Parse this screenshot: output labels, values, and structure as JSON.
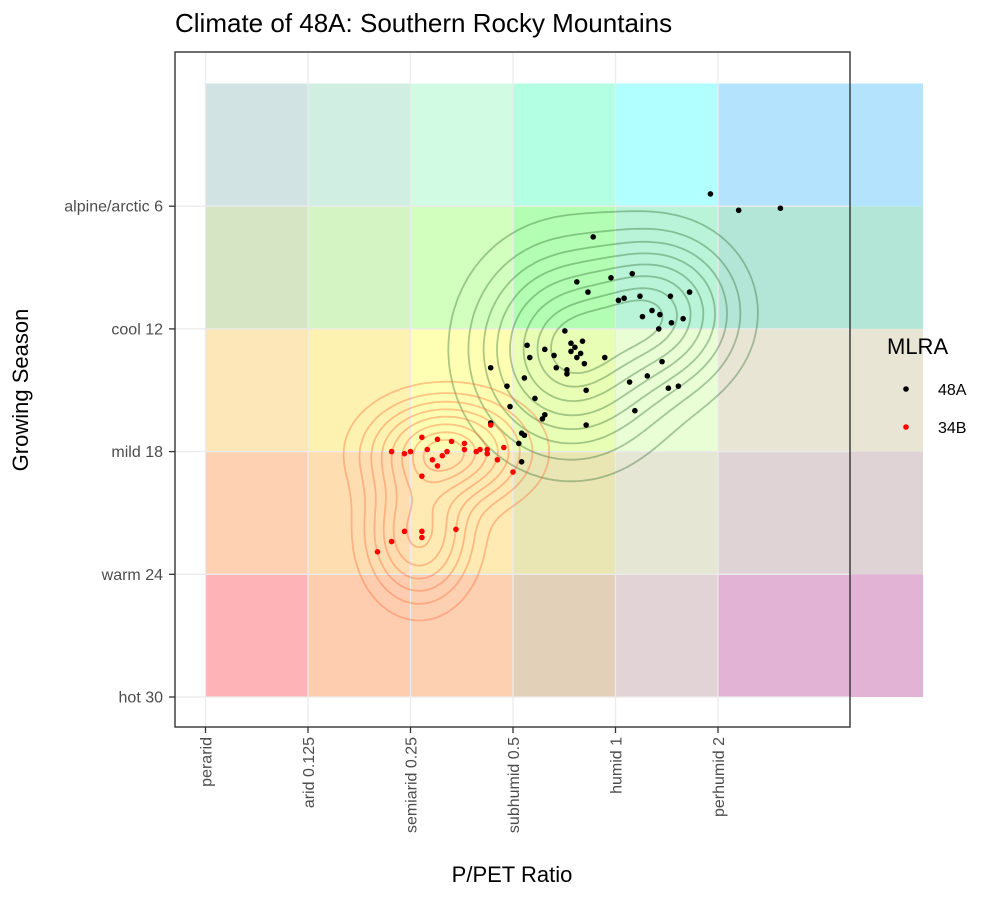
{
  "chart_data": {
    "type": "scatter",
    "title": "Climate of 48A: Southern Rocky Mountains",
    "xlabel": "P/PET Ratio",
    "ylabel": "Growing Season",
    "x_scale": "log2",
    "xlim": [
      0.0625,
      8
    ],
    "ylim": [
      0,
      36
    ],
    "x_ticks": [
      {
        "value": 0.0625,
        "label": "perarid"
      },
      {
        "value": 0.125,
        "label": "arid 0.125"
      },
      {
        "value": 0.25,
        "label": "semiarid 0.25"
      },
      {
        "value": 0.5,
        "label": "subhumid 0.5"
      },
      {
        "value": 1,
        "label": "humid 1"
      },
      {
        "value": 2,
        "label": "perhumid 2"
      }
    ],
    "y_ticks": [
      {
        "value": 30,
        "label": "hot 30"
      },
      {
        "value": 24,
        "label": "warm 24"
      },
      {
        "value": 18,
        "label": "mild 18"
      },
      {
        "value": 12,
        "label": "cool 12"
      },
      {
        "value": 6,
        "label": "alpine/arctic 6"
      }
    ],
    "grid": true,
    "legend": {
      "title": "MLRA",
      "position": "right"
    },
    "regions": {
      "x_breaks": [
        0.0625,
        0.125,
        0.25,
        0.5,
        1,
        2,
        8
      ],
      "y_breaks": [
        0,
        6,
        12,
        18,
        24,
        30
      ],
      "colors": [
        [
          "#d1e3e3",
          "#d1eee3",
          "#d1fce3",
          "#b2ffe3",
          "#b2ffff",
          "#b4e3fd"
        ],
        [
          "#d6e6c4",
          "#d4f4c4",
          "#d2ffbe",
          "#b2ffb3",
          "#b9f3d8",
          "#b4e6d7"
        ],
        [
          "#fde6b8",
          "#fdf2b0",
          "#feffb2",
          "#e9feb5",
          "#e9fed5",
          "#e8e5d5"
        ],
        [
          "#fed1b3",
          "#fedeb0",
          "#feeab2",
          "#e9e6b3",
          "#e6e6d5",
          "#e0d3d5"
        ],
        [
          "#feb3b7",
          "#fecdb0",
          "#fed0b2",
          "#e3d0b8",
          "#e2d3d6",
          "#e2b3d5"
        ]
      ]
    },
    "series": [
      {
        "name": "48A",
        "color": "#000000",
        "points": [
          [
            1.9,
            5.4
          ],
          [
            2.3,
            6.2
          ],
          [
            3.05,
            6.1
          ],
          [
            0.86,
            7.5
          ],
          [
            0.77,
            9.7
          ],
          [
            0.97,
            9.5
          ],
          [
            0.83,
            10.2
          ],
          [
            1.02,
            10.6
          ],
          [
            1.12,
            9.3
          ],
          [
            1.06,
            10.5
          ],
          [
            1.18,
            10.4
          ],
          [
            1.45,
            10.4
          ],
          [
            1.65,
            10.2
          ],
          [
            1.2,
            11.4
          ],
          [
            1.28,
            11.1
          ],
          [
            1.35,
            11.3
          ],
          [
            1.46,
            11.7
          ],
          [
            1.58,
            11.5
          ],
          [
            1.34,
            12.0
          ],
          [
            0.62,
            13.0
          ],
          [
            0.71,
            12.1
          ],
          [
            0.74,
            12.7
          ],
          [
            0.76,
            12.9
          ],
          [
            0.74,
            13.1
          ],
          [
            0.8,
            12.6
          ],
          [
            0.79,
            13.2
          ],
          [
            0.77,
            13.4
          ],
          [
            0.66,
            13.3
          ],
          [
            0.56,
            13.4
          ],
          [
            0.55,
            12.8
          ],
          [
            0.67,
            13.9
          ],
          [
            0.81,
            13.7
          ],
          [
            0.93,
            13.4
          ],
          [
            0.72,
            14.0
          ],
          [
            0.54,
            14.4
          ],
          [
            0.72,
            14.2
          ],
          [
            0.82,
            15.0
          ],
          [
            1.24,
            14.3
          ],
          [
            1.37,
            13.6
          ],
          [
            1.43,
            14.9
          ],
          [
            1.53,
            14.8
          ],
          [
            1.1,
            14.6
          ],
          [
            1.14,
            16.0
          ],
          [
            0.43,
            13.9
          ],
          [
            0.48,
            14.8
          ],
          [
            0.58,
            15.4
          ],
          [
            0.49,
            15.8
          ],
          [
            0.62,
            16.2
          ],
          [
            0.61,
            16.4
          ],
          [
            0.82,
            16.7
          ],
          [
            0.43,
            16.6
          ],
          [
            0.53,
            17.1
          ],
          [
            0.54,
            17.2
          ],
          [
            0.52,
            17.6
          ],
          [
            0.53,
            18.5
          ]
        ]
      },
      {
        "name": "34B",
        "color": "#ff0000",
        "points": [
          [
            0.43,
            16.7
          ],
          [
            0.42,
            17.9
          ],
          [
            0.27,
            17.3
          ],
          [
            0.3,
            17.4
          ],
          [
            0.33,
            17.5
          ],
          [
            0.36,
            17.6
          ],
          [
            0.4,
            17.9
          ],
          [
            0.47,
            17.8
          ],
          [
            0.45,
            18.4
          ],
          [
            0.22,
            18.0
          ],
          [
            0.25,
            18.0
          ],
          [
            0.28,
            17.9
          ],
          [
            0.31,
            18.2
          ],
          [
            0.32,
            18.0
          ],
          [
            0.36,
            17.9
          ],
          [
            0.39,
            18.0
          ],
          [
            0.42,
            18.1
          ],
          [
            0.5,
            19.0
          ],
          [
            0.24,
            18.1
          ],
          [
            0.29,
            18.4
          ],
          [
            0.3,
            18.7
          ],
          [
            0.27,
            19.2
          ],
          [
            0.27,
            21.9
          ],
          [
            0.24,
            21.9
          ],
          [
            0.22,
            22.4
          ],
          [
            0.2,
            22.9
          ],
          [
            0.27,
            22.2
          ],
          [
            0.34,
            21.8
          ]
        ]
      }
    ],
    "density_contours": [
      {
        "series": "48A",
        "color": "#2f6b2f",
        "centers": [
          [
            0.74,
            13.0,
            1.2,
            1.7,
            1.0
          ],
          [
            1.35,
            11.2,
            1.0,
            1.3,
            0.78
          ]
        ]
      },
      {
        "series": "34B",
        "color": "#ff6a35",
        "centers": [
          [
            0.32,
            18.0,
            1.0,
            0.9,
            1.0
          ],
          [
            0.265,
            22.0,
            0.7,
            1.2,
            0.7
          ]
        ]
      }
    ]
  }
}
